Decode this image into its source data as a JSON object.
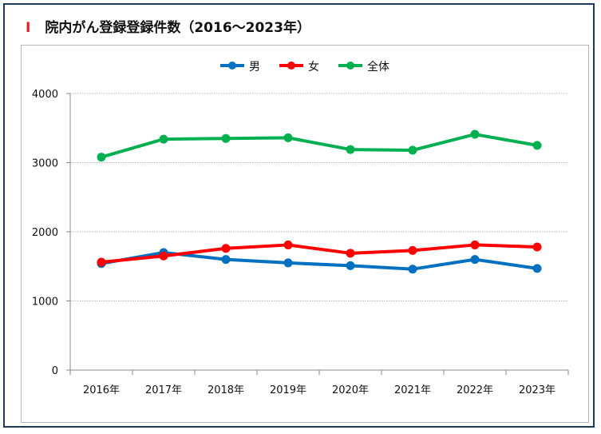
{
  "heading": {
    "marker": "Ⅰ",
    "title": "院内がん登録登録件数（2016～2023年）"
  },
  "chart_data": {
    "type": "line",
    "title": "",
    "xlabel": "",
    "ylabel": "",
    "categories": [
      "2016年",
      "2017年",
      "2018年",
      "2019年",
      "2020年",
      "2021年",
      "2022年",
      "2023年"
    ],
    "ylim": [
      0,
      4000
    ],
    "yticks": [
      0,
      1000,
      2000,
      3000,
      4000
    ],
    "grid": true,
    "legend_position": "top",
    "series": [
      {
        "name": "男",
        "color": "#0070c0",
        "values": [
          1540,
          1700,
          1600,
          1550,
          1510,
          1460,
          1600,
          1470
        ]
      },
      {
        "name": "女",
        "color": "#ff0000",
        "values": [
          1560,
          1650,
          1760,
          1810,
          1690,
          1730,
          1810,
          1780
        ]
      },
      {
        "name": "全体",
        "color": "#00b050",
        "values": [
          3080,
          3340,
          3350,
          3360,
          3190,
          3180,
          3410,
          3250
        ]
      }
    ]
  }
}
